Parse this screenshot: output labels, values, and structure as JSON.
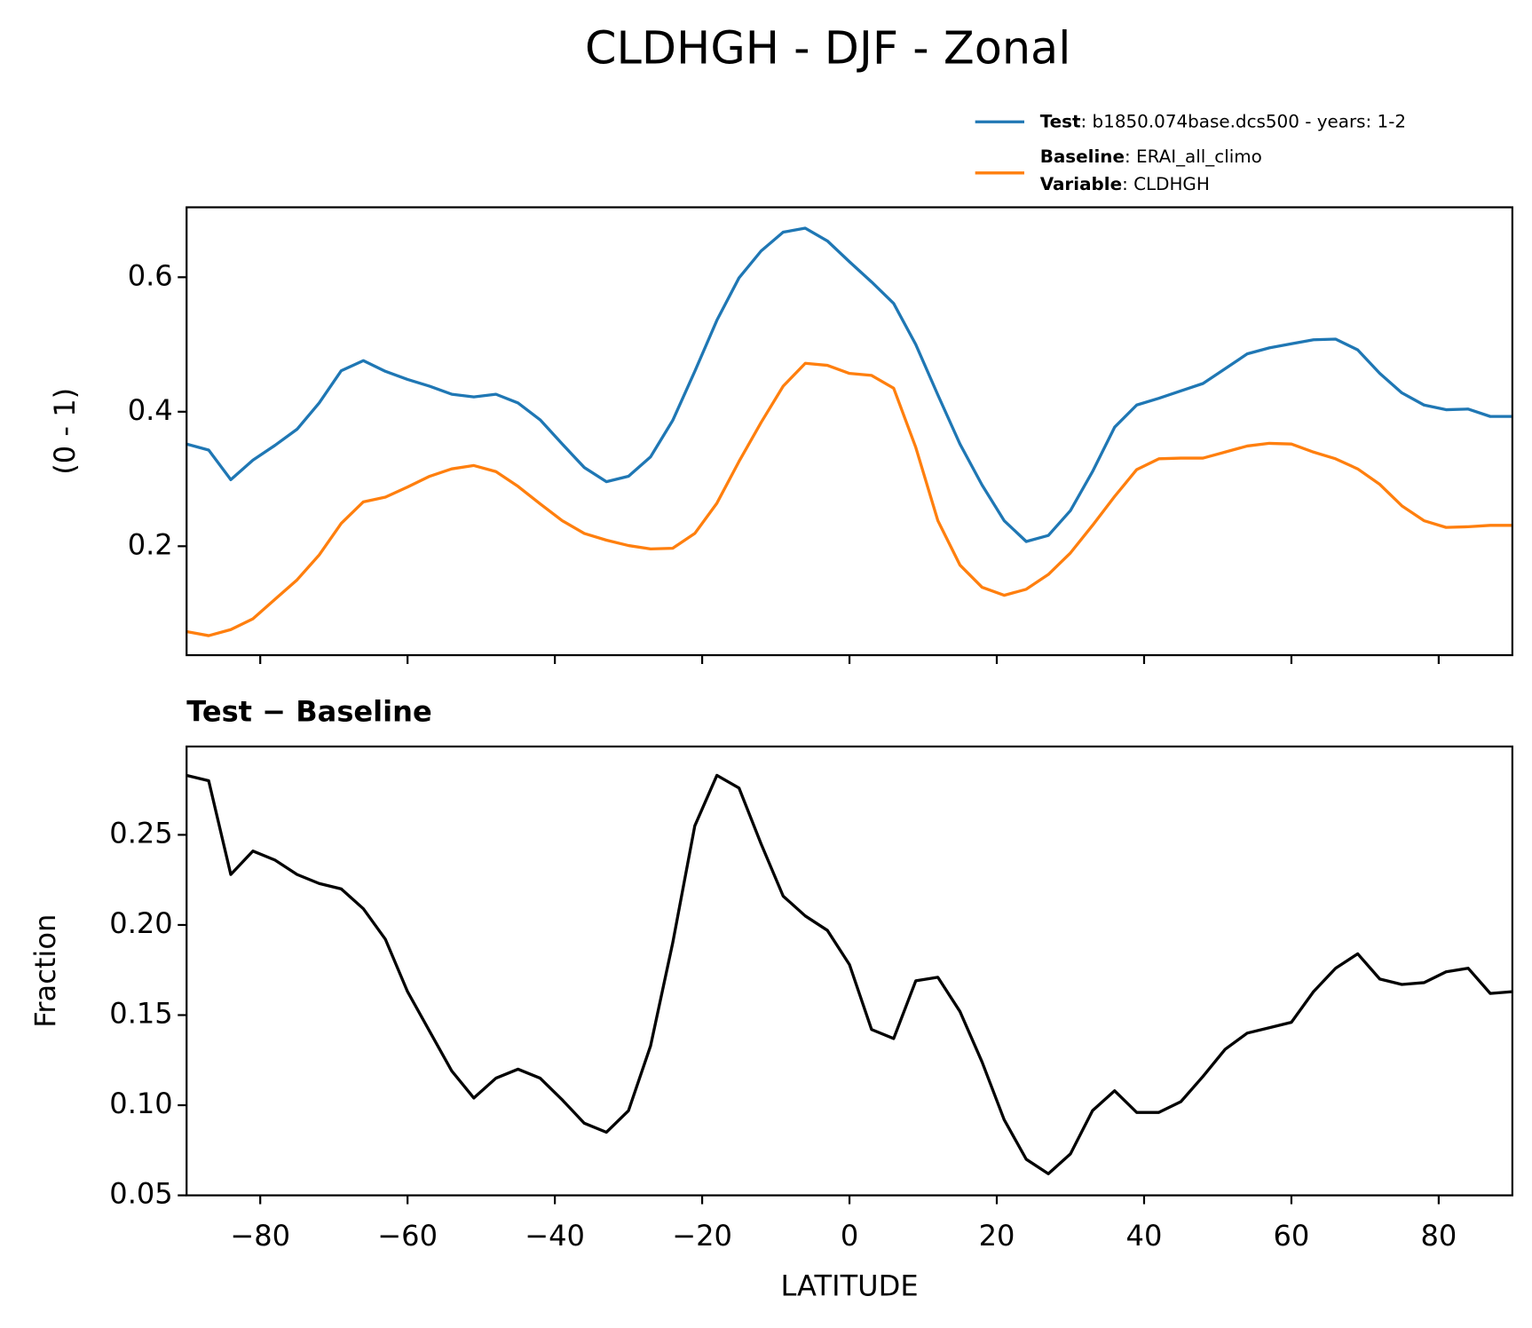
{
  "title": "CLDHGH - DJF - Zonal",
  "chart_data": [
    {
      "type": "line",
      "ylabel": "(0 - 1)",
      "x": [
        -90,
        -87,
        -84,
        -81,
        -78,
        -75,
        -72,
        -69,
        -66,
        -63,
        -60,
        -57,
        -54,
        -51,
        -48,
        -45,
        -42,
        -39,
        -36,
        -33,
        -30,
        -27,
        -24,
        -21,
        -18,
        -15,
        -12,
        -9,
        -6,
        -3,
        0,
        3,
        6,
        9,
        12,
        15,
        18,
        21,
        24,
        27,
        30,
        33,
        36,
        39,
        42,
        45,
        48,
        51,
        54,
        57,
        60,
        63,
        66,
        69,
        72,
        75,
        78,
        81,
        84,
        87,
        90
      ],
      "series": [
        {
          "name": "Test",
          "legend_text": ": b1850.074base.dcs500 - years: 1-2",
          "color": "#1f77b4",
          "values": [
            0.352,
            0.343,
            0.299,
            0.328,
            0.35,
            0.374,
            0.413,
            0.461,
            0.476,
            0.46,
            0.448,
            0.438,
            0.426,
            0.422,
            0.426,
            0.413,
            0.388,
            0.352,
            0.317,
            0.296,
            0.304,
            0.333,
            0.387,
            0.46,
            0.536,
            0.599,
            0.639,
            0.667,
            0.673,
            0.654,
            0.623,
            0.593,
            0.561,
            0.5,
            0.425,
            0.352,
            0.291,
            0.238,
            0.207,
            0.216,
            0.253,
            0.311,
            0.377,
            0.41,
            0.42,
            0.431,
            0.442,
            0.464,
            0.486,
            0.495,
            0.501,
            0.507,
            0.508,
            0.492,
            0.457,
            0.428,
            0.41,
            0.403,
            0.404,
            0.393,
            0.393
          ]
        },
        {
          "name": "Baseline",
          "legend_text": ": ERAI_all_climo",
          "color": "#ff7f0e",
          "values": [
            0.073,
            0.067,
            0.076,
            0.092,
            0.121,
            0.15,
            0.187,
            0.234,
            0.266,
            0.273,
            0.288,
            0.304,
            0.315,
            0.32,
            0.311,
            0.289,
            0.263,
            0.238,
            0.219,
            0.209,
            0.201,
            0.196,
            0.197,
            0.219,
            0.264,
            0.326,
            0.384,
            0.438,
            0.472,
            0.469,
            0.457,
            0.454,
            0.435,
            0.347,
            0.238,
            0.172,
            0.139,
            0.127,
            0.136,
            0.158,
            0.19,
            0.231,
            0.274,
            0.314,
            0.33,
            0.331,
            0.331,
            0.34,
            0.349,
            0.353,
            0.352,
            0.34,
            0.33,
            0.315,
            0.292,
            0.26,
            0.238,
            0.228,
            0.229,
            0.231,
            0.231
          ]
        }
      ],
      "legend_extra": {
        "name": "Variable",
        "legend_text": ": CLDHGH"
      },
      "xlim": [
        -90,
        90
      ],
      "xticks": [
        -80,
        -60,
        -40,
        -20,
        0,
        20,
        40,
        60,
        80
      ],
      "ylim": [
        0.038,
        0.704
      ],
      "yticks": [
        0.2,
        0.4,
        0.6
      ]
    },
    {
      "type": "line",
      "title": "Test − Baseline",
      "ylabel": "Fraction",
      "xlabel": "LATITUDE",
      "color": "#000000",
      "x": [
        -90,
        -87,
        -84,
        -81,
        -78,
        -75,
        -72,
        -69,
        -66,
        -63,
        -60,
        -57,
        -54,
        -51,
        -48,
        -45,
        -42,
        -39,
        -36,
        -33,
        -30,
        -27,
        -24,
        -21,
        -18,
        -15,
        -12,
        -9,
        -6,
        -3,
        0,
        3,
        6,
        9,
        12,
        15,
        18,
        21,
        24,
        27,
        30,
        33,
        36,
        39,
        42,
        45,
        48,
        51,
        54,
        57,
        60,
        63,
        66,
        69,
        72,
        75,
        78,
        81,
        84,
        87,
        90
      ],
      "values": [
        0.283,
        0.28,
        0.228,
        0.241,
        0.236,
        0.228,
        0.223,
        0.22,
        0.209,
        0.192,
        0.163,
        0.141,
        0.119,
        0.104,
        0.115,
        0.12,
        0.115,
        0.103,
        0.09,
        0.085,
        0.097,
        0.133,
        0.19,
        0.255,
        0.283,
        0.276,
        0.245,
        0.216,
        0.205,
        0.197,
        0.178,
        0.142,
        0.137,
        0.169,
        0.171,
        0.152,
        0.124,
        0.092,
        0.07,
        0.062,
        0.073,
        0.097,
        0.108,
        0.096,
        0.096,
        0.102,
        0.116,
        0.131,
        0.14,
        0.143,
        0.146,
        0.163,
        0.176,
        0.184,
        0.17,
        0.167,
        0.168,
        0.174,
        0.176,
        0.162,
        0.163
      ],
      "xlim": [
        -90,
        90
      ],
      "xticks": [
        {
          "value": -80,
          "label": "−80"
        },
        {
          "value": -60,
          "label": "−60"
        },
        {
          "value": -40,
          "label": "−40"
        },
        {
          "value": -20,
          "label": "−20"
        },
        0,
        20,
        40,
        60,
        80
      ],
      "ylim": [
        0.05,
        0.299
      ],
      "yticks": [
        0.05,
        {
          "value": 0.1,
          "label": "0.10"
        },
        0.15,
        {
          "value": 0.2,
          "label": "0.20"
        },
        0.25
      ]
    }
  ]
}
